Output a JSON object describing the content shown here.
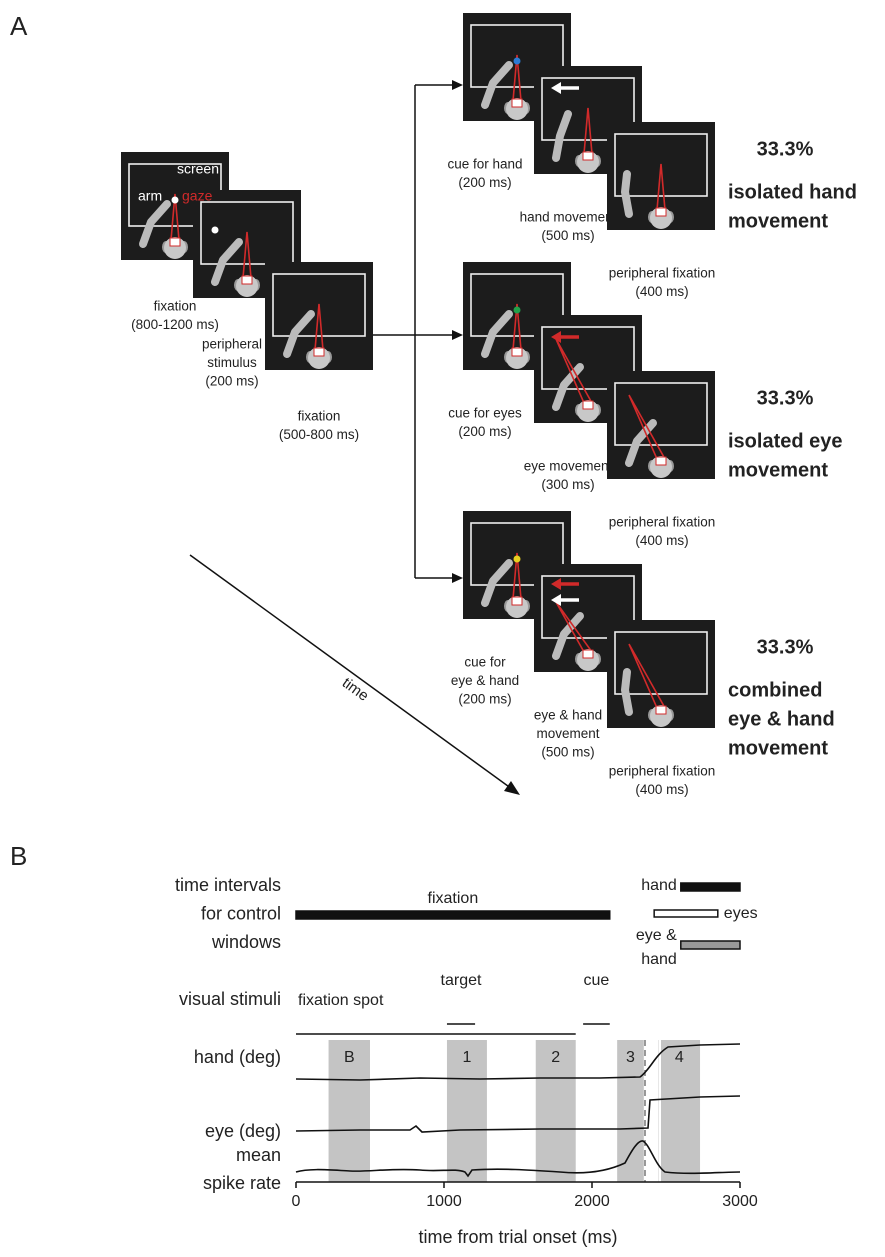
{
  "panel_a": {
    "label": "A",
    "screen_labels": {
      "screen": "screen",
      "arm": "arm",
      "gaze": "gaze"
    },
    "initial_steps": [
      {
        "caption": [
          "fixation",
          "(800-1200 ms)"
        ]
      },
      {
        "caption": [
          "peripheral",
          "stimulus",
          "(200 ms)"
        ]
      },
      {
        "caption": [
          "fixation",
          "(500-800 ms)"
        ]
      }
    ],
    "time_label": "time",
    "conditions": [
      {
        "percent": "33.3%",
        "name": [
          "isolated hand",
          "movement"
        ],
        "steps": [
          {
            "caption": [
              "cue for hand",
              "(200 ms)"
            ]
          },
          {
            "caption": [
              "hand movement",
              "(500 ms)"
            ]
          },
          {
            "caption": [
              "peripheral fixation",
              "(400 ms)"
            ]
          }
        ]
      },
      {
        "percent": "33.3%",
        "name": [
          "isolated eye",
          "movement"
        ],
        "steps": [
          {
            "caption": [
              "cue for eyes",
              "(200 ms)"
            ]
          },
          {
            "caption": [
              "eye movement",
              "(300 ms)"
            ]
          },
          {
            "caption": [
              "peripheral fixation",
              "(400 ms)"
            ]
          }
        ]
      },
      {
        "percent": "33.3%",
        "name": [
          "combined",
          "eye & hand",
          "movement"
        ],
        "steps": [
          {
            "caption": [
              "cue for",
              "eye & hand",
              "(200 ms)"
            ]
          },
          {
            "caption": [
              "eye & hand",
              "movement",
              "(500 ms)"
            ]
          },
          {
            "caption": [
              "peripheral fixation",
              "(400 ms)"
            ]
          }
        ]
      }
    ]
  },
  "panel_b": {
    "label": "B",
    "xlabel": "time from trial onset (ms)",
    "xlim": [
      0,
      3000
    ],
    "xticks": [
      0,
      1000,
      2000,
      3000
    ],
    "control_windows": {
      "label": [
        "time intervals",
        "for control",
        "windows"
      ],
      "fixation": {
        "label": "fixation",
        "start": 0,
        "end": 2120
      },
      "hand": {
        "label": "hand",
        "start": 2600,
        "end": 3000
      },
      "eyes": {
        "label": "eyes",
        "start": 2420,
        "end": 2850
      },
      "eye_hand": {
        "label": [
          "eye &",
          "hand"
        ],
        "start": 2600,
        "end": 3000
      }
    },
    "visual_stimuli": {
      "label": "visual stimuli",
      "items": [
        {
          "label": "fixation spot",
          "start": 0,
          "end": 1890
        },
        {
          "label": "target",
          "start": 1020,
          "end": 1210
        },
        {
          "label": "cue",
          "start": 1940,
          "end": 2120
        }
      ]
    },
    "analysis_windows": [
      {
        "label": "B",
        "start": 220,
        "end": 500
      },
      {
        "label": "1",
        "start": 1020,
        "end": 1290
      },
      {
        "label": "2",
        "start": 1620,
        "end": 1890
      },
      {
        "label": "3",
        "start": 2170,
        "end": 2350
      },
      {
        "label": "4",
        "start": 2450,
        "end": 2730
      }
    ],
    "traces": {
      "hand": "hand (deg)",
      "eye": "eye (deg)",
      "spike": [
        "mean",
        "spike rate"
      ]
    }
  }
}
